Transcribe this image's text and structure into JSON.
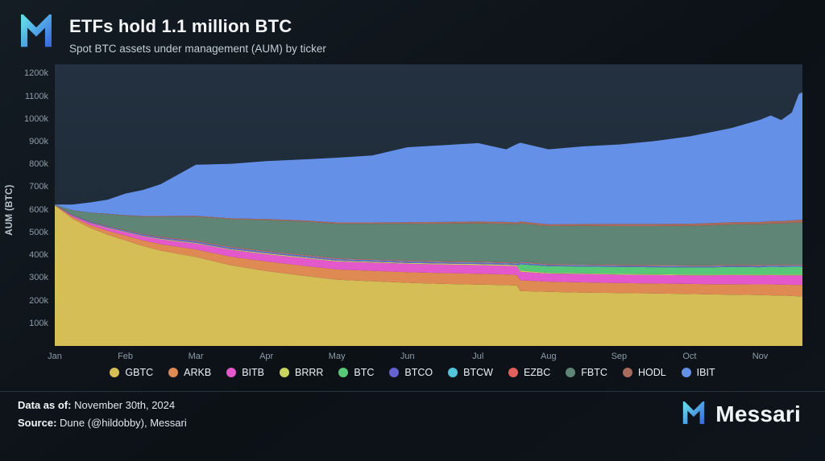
{
  "header": {
    "title": "ETFs hold 1.1 million BTC",
    "subtitle": "Spot BTC assets under management (AUM) by ticker"
  },
  "footer": {
    "data_as_of_label": "Data as of:",
    "data_as_of_value": "November 30th, 2024",
    "source_label": "Source:",
    "source_value": "Dune (@hildobby), Messari",
    "brand": "Messari"
  },
  "chart_data": {
    "type": "area",
    "stacked": true,
    "title": "ETFs hold 1.1 million BTC",
    "subtitle": "Spot BTC assets under management (AUM) by ticker",
    "xlabel": "",
    "ylabel": "AUM (BTC)",
    "y_unit": "thousand BTC",
    "xlim": [
      0,
      10.6
    ],
    "ylim": [
      0,
      1240
    ],
    "grid": false,
    "legend_position": "bottom",
    "x_ticks": {
      "values": [
        0,
        1,
        2,
        3,
        4,
        5,
        6,
        7,
        8,
        9,
        10
      ],
      "labels": [
        "Jan",
        "Feb",
        "Mar",
        "Apr",
        "May",
        "Jun",
        "Jul",
        "Aug",
        "Sep",
        "Oct",
        "Nov"
      ]
    },
    "y_ticks": {
      "values": [
        100,
        200,
        300,
        400,
        500,
        600,
        700,
        800,
        900,
        1000,
        1100,
        1200
      ],
      "labels": [
        "100k",
        "200k",
        "300k",
        "400k",
        "500k",
        "600k",
        "700k",
        "800k",
        "900k",
        "1000k",
        "1100k",
        "1200k"
      ]
    },
    "x": [
      0,
      0.25,
      0.5,
      0.75,
      1,
      1.25,
      1.5,
      2,
      2.5,
      3,
      3.5,
      4,
      4.5,
      5,
      5.5,
      6,
      6.4,
      6.55,
      6.6,
      7,
      7.5,
      8,
      8.5,
      9,
      9.3,
      9.6,
      10,
      10.15,
      10.3,
      10.45,
      10.55,
      10.6
    ],
    "series": [
      {
        "name": "GBTC",
        "color": "#d4be55",
        "values": [
          619,
          560,
          520,
          490,
          465,
          440,
          420,
          392,
          355,
          330,
          310,
          292,
          285,
          278,
          273,
          270,
          268,
          266,
          242,
          238,
          235,
          233,
          231,
          229,
          227,
          226,
          224,
          223,
          222,
          220,
          219,
          218
        ]
      },
      {
        "name": "ARKB",
        "color": "#de8a52",
        "values": [
          1,
          8,
          13,
          17,
          21,
          25,
          28,
          33,
          38,
          42,
          44,
          45,
          46,
          47,
          48,
          48,
          47,
          47,
          47,
          45,
          45,
          44,
          44,
          44,
          45,
          46,
          47,
          48,
          48,
          49,
          50,
          51
        ]
      },
      {
        "name": "BITB",
        "color": "#e358cb",
        "values": [
          1,
          5,
          9,
          12,
          15,
          18,
          21,
          26,
          30,
          32,
          34,
          35,
          36,
          37,
          38,
          38,
          38,
          38,
          38,
          36,
          37,
          37,
          38,
          38,
          39,
          40,
          40,
          41,
          41,
          42,
          42,
          42
        ]
      },
      {
        "name": "BRRR",
        "color": "#c9d35f",
        "values": [
          0,
          1,
          1,
          2,
          2,
          2,
          3,
          3,
          3,
          4,
          4,
          4,
          4,
          4,
          4,
          5,
          5,
          5,
          5,
          3,
          3,
          3,
          3,
          3,
          3,
          3,
          3,
          3,
          3,
          3,
          3,
          3
        ]
      },
      {
        "name": "BTC",
        "color": "#56c878",
        "values": [
          0,
          0,
          0,
          0,
          0,
          0,
          0,
          0,
          0,
          0,
          0,
          0,
          0,
          0,
          0,
          0,
          0,
          0,
          28,
          29,
          30,
          31,
          31,
          32,
          32,
          33,
          33,
          34,
          34,
          35,
          35,
          36
        ]
      },
      {
        "name": "BTCO",
        "color": "#6463cf",
        "values": [
          0,
          2,
          3,
          4,
          4,
          5,
          5,
          5,
          5,
          5,
          5,
          5,
          5,
          5,
          5,
          5,
          5,
          5,
          5,
          4,
          4,
          4,
          4,
          4,
          4,
          4,
          4,
          4,
          4,
          4,
          4,
          4
        ]
      },
      {
        "name": "BTCW",
        "color": "#52c5da",
        "values": [
          0,
          0,
          1,
          1,
          1,
          1,
          1,
          2,
          2,
          2,
          2,
          2,
          2,
          2,
          2,
          2,
          2,
          2,
          2,
          2,
          2,
          2,
          2,
          2,
          2,
          2,
          2,
          2,
          2,
          2,
          2,
          2
        ]
      },
      {
        "name": "EZBC",
        "color": "#e2605c",
        "values": [
          0,
          1,
          1,
          2,
          2,
          2,
          3,
          3,
          3,
          3,
          3,
          3,
          3,
          3,
          3,
          3,
          3,
          3,
          3,
          3,
          3,
          3,
          3,
          3,
          3,
          3,
          3,
          3,
          3,
          3,
          3,
          3
        ]
      },
      {
        "name": "FBTC",
        "color": "#5f8576",
        "values": [
          1,
          20,
          38,
          52,
          64,
          76,
          88,
          105,
          122,
          136,
          146,
          152,
          157,
          162,
          166,
          169,
          170,
          170,
          170,
          168,
          170,
          171,
          172,
          174,
          176,
          178,
          180,
          181,
          182,
          184,
          185,
          186
        ]
      },
      {
        "name": "HODL",
        "color": "#a96b5b",
        "values": [
          0,
          1,
          1,
          2,
          2,
          3,
          3,
          4,
          4,
          5,
          5,
          6,
          6,
          7,
          7,
          8,
          8,
          8,
          8,
          8,
          8,
          9,
          9,
          9,
          10,
          10,
          10,
          11,
          11,
          11,
          12,
          12
        ]
      },
      {
        "name": "IBIT",
        "color": "#6490e8",
        "values": [
          1,
          25,
          45,
          62,
          95,
          115,
          140,
          225,
          240,
          255,
          268,
          285,
          295,
          330,
          338,
          345,
          320,
          345,
          347,
          330,
          342,
          350,
          365,
          385,
          400,
          415,
          450,
          465,
          445,
          475,
          555,
          560
        ]
      }
    ]
  }
}
